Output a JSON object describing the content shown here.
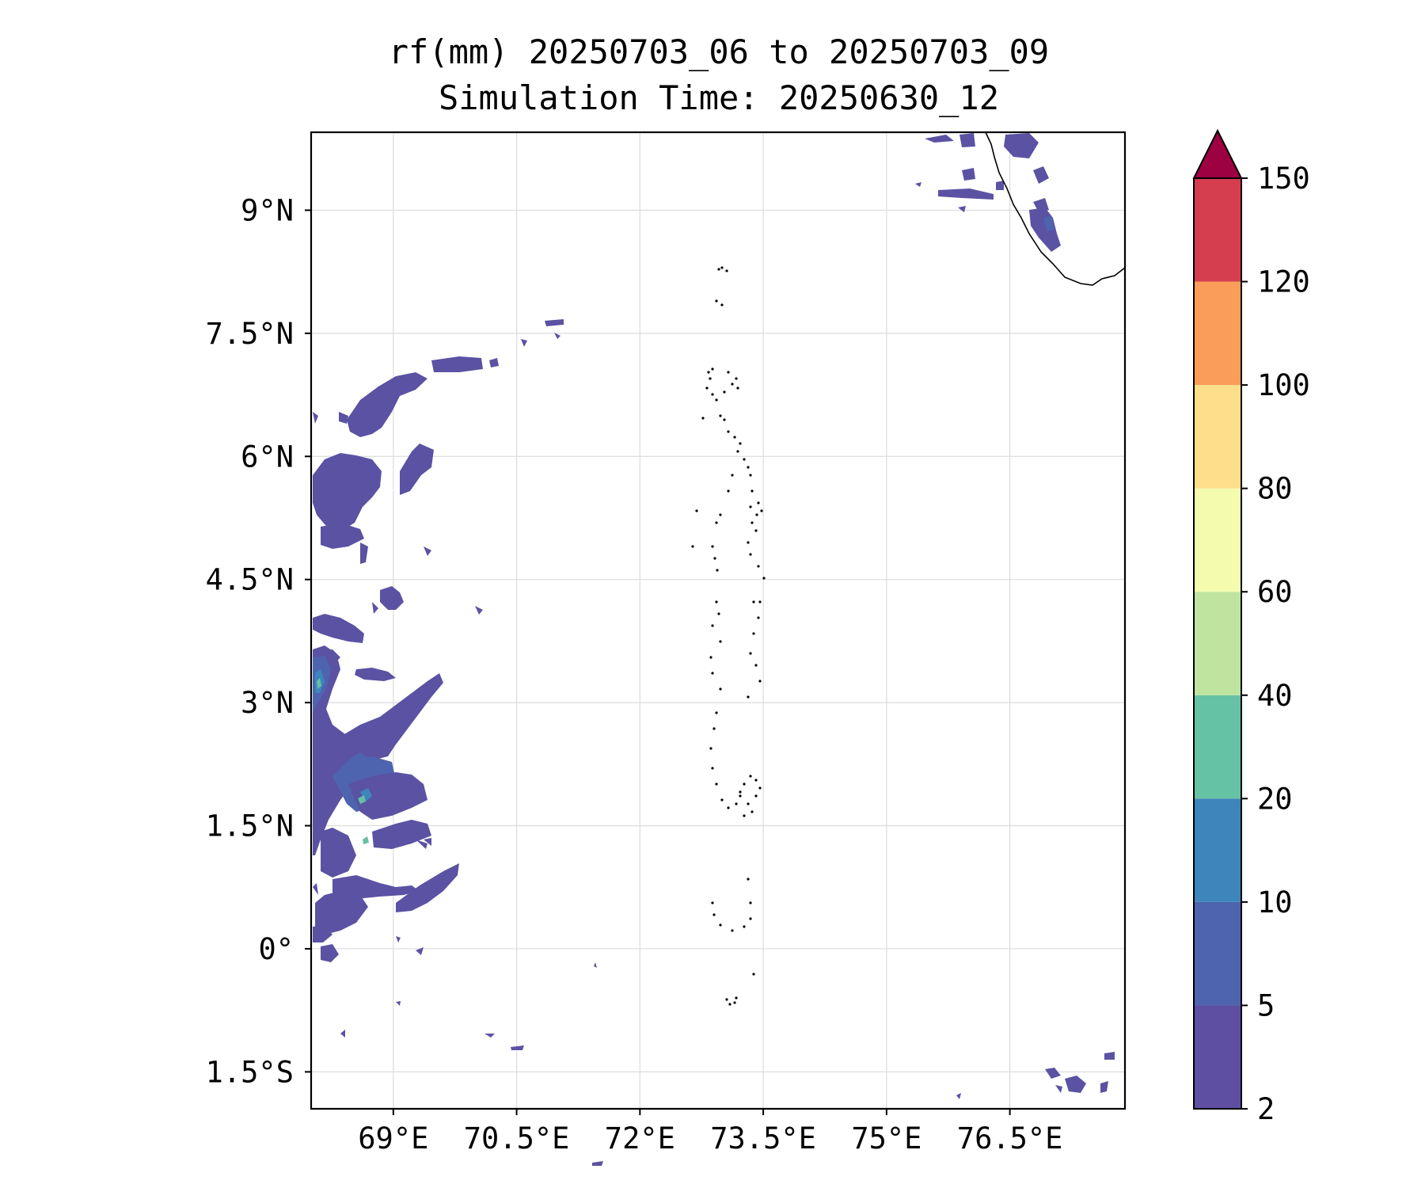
{
  "title": {
    "line1": "rf(mm) 20250703_06 to 20250703_09",
    "line2": "Simulation Time: 20250630_12"
  },
  "map": {
    "lon_range": [
      68.0,
      77.9
    ],
    "lat_range": [
      -1.95,
      9.95
    ],
    "x_ticks": [
      {
        "value": 69.0,
        "label": "69°E"
      },
      {
        "value": 70.5,
        "label": "70.5°E"
      },
      {
        "value": 72.0,
        "label": "72°E"
      },
      {
        "value": 73.5,
        "label": "73.5°E"
      },
      {
        "value": 75.0,
        "label": "75°E"
      },
      {
        "value": 76.5,
        "label": "76.5°E"
      }
    ],
    "y_ticks": [
      {
        "value": 9.0,
        "label": "9°N"
      },
      {
        "value": 7.5,
        "label": "7.5°N"
      },
      {
        "value": 6.0,
        "label": "6°N"
      },
      {
        "value": 4.5,
        "label": "4.5°N"
      },
      {
        "value": 3.0,
        "label": "3°N"
      },
      {
        "value": 1.5,
        "label": "1.5°N"
      },
      {
        "value": 0.0,
        "label": "0°"
      },
      {
        "value": -1.5,
        "label": "1.5°S"
      }
    ],
    "grid": true
  },
  "colorbar": {
    "levels": [
      {
        "value": 2,
        "label": "2"
      },
      {
        "value": 5,
        "label": "5"
      },
      {
        "value": 10,
        "label": "10"
      },
      {
        "value": 20,
        "label": "20"
      },
      {
        "value": 40,
        "label": "40"
      },
      {
        "value": 60,
        "label": "60"
      },
      {
        "value": 80,
        "label": "80"
      },
      {
        "value": 100,
        "label": "100"
      },
      {
        "value": 120,
        "label": "120"
      },
      {
        "value": 150,
        "label": "150"
      }
    ],
    "colors": [
      "#5e4fa2",
      "#4e64ae",
      "#3d86bb",
      "#66c2a5",
      "#bee4a0",
      "#f4fbaf",
      "#fddf8b",
      "#f99d59",
      "#d53e4f"
    ],
    "extend_color": "#9e0142",
    "extend": "max"
  }
}
